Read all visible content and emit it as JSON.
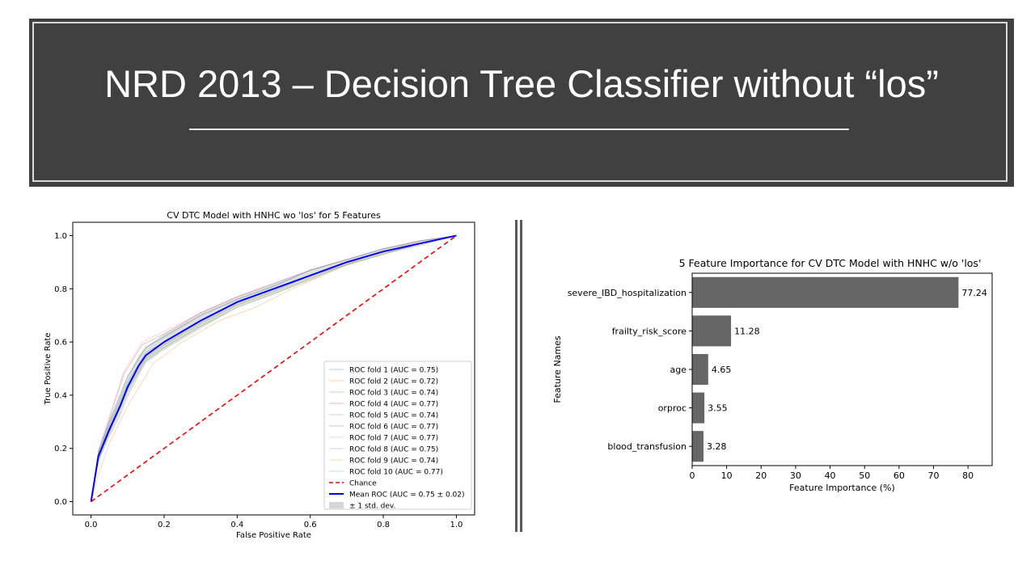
{
  "slide": {
    "title": "NRD 2013 – Decision Tree Classifier without “los”"
  },
  "chart_data": [
    {
      "type": "line",
      "title": "CV DTC Model with HNHC wo 'los' for 5 Features",
      "xlabel": "False Positive Rate",
      "ylabel": "True Positive Rate",
      "xlim": [
        -0.05,
        1.05
      ],
      "ylim": [
        -0.05,
        1.05
      ],
      "xticks": [
        0.0,
        0.2,
        0.4,
        0.6,
        0.8,
        1.0
      ],
      "yticks": [
        0.0,
        0.2,
        0.4,
        0.6,
        0.8,
        1.0
      ],
      "tick_labels": [
        "0.0",
        "0.2",
        "0.4",
        "0.6",
        "0.8",
        "1.0"
      ],
      "grid": false,
      "legend_position": "lower-right",
      "series": [
        {
          "name": "ROC fold 1 (AUC = 0.75)",
          "color": "#1f77b4",
          "x": [
            0,
            0.02,
            0.05,
            0.1,
            0.15,
            0.2,
            0.3,
            0.4,
            0.5,
            0.6,
            0.7,
            0.8,
            0.9,
            1.0
          ],
          "y": [
            0,
            0.17,
            0.28,
            0.44,
            0.55,
            0.6,
            0.68,
            0.75,
            0.8,
            0.85,
            0.9,
            0.94,
            0.97,
            1.0
          ]
        },
        {
          "name": "ROC fold 2 (AUC = 0.72)",
          "color": "#ff7f0e",
          "x": [
            0,
            0.02,
            0.05,
            0.1,
            0.14,
            0.17,
            0.25,
            0.35,
            0.45,
            0.55,
            0.65,
            0.75,
            0.85,
            1.0
          ],
          "y": [
            0,
            0.1,
            0.22,
            0.36,
            0.45,
            0.52,
            0.6,
            0.68,
            0.73,
            0.8,
            0.86,
            0.92,
            0.96,
            1.0
          ]
        },
        {
          "name": "ROC fold 3 (AUC = 0.74)",
          "color": "#2ca02c",
          "x": [
            0,
            0.02,
            0.05,
            0.1,
            0.15,
            0.2,
            0.3,
            0.4,
            0.5,
            0.6,
            0.7,
            0.8,
            0.9,
            1.0
          ],
          "y": [
            0,
            0.15,
            0.26,
            0.42,
            0.53,
            0.58,
            0.66,
            0.73,
            0.78,
            0.84,
            0.89,
            0.93,
            0.97,
            1.0
          ]
        },
        {
          "name": "ROC fold 4 (AUC = 0.77)",
          "color": "#d62728",
          "x": [
            0,
            0.02,
            0.05,
            0.09,
            0.14,
            0.2,
            0.3,
            0.4,
            0.5,
            0.6,
            0.7,
            0.8,
            0.9,
            1.0
          ],
          "y": [
            0,
            0.19,
            0.31,
            0.48,
            0.59,
            0.63,
            0.71,
            0.77,
            0.82,
            0.87,
            0.91,
            0.95,
            0.98,
            1.0
          ]
        },
        {
          "name": "ROC fold 5 (AUC = 0.74)",
          "color": "#9467bd",
          "x": [
            0,
            0.02,
            0.05,
            0.1,
            0.15,
            0.2,
            0.3,
            0.4,
            0.5,
            0.6,
            0.7,
            0.8,
            0.9,
            1.0
          ],
          "y": [
            0,
            0.16,
            0.27,
            0.43,
            0.54,
            0.59,
            0.67,
            0.74,
            0.79,
            0.85,
            0.89,
            0.93,
            0.97,
            1.0
          ]
        },
        {
          "name": "ROC fold 6 (AUC = 0.77)",
          "color": "#8c564b",
          "x": [
            0,
            0.02,
            0.05,
            0.1,
            0.15,
            0.2,
            0.3,
            0.4,
            0.5,
            0.6,
            0.7,
            0.8,
            0.9,
            1.0
          ],
          "y": [
            0,
            0.18,
            0.3,
            0.47,
            0.58,
            0.62,
            0.7,
            0.76,
            0.81,
            0.87,
            0.91,
            0.95,
            0.98,
            1.0
          ]
        },
        {
          "name": "ROC fold 7 (AUC = 0.77)",
          "color": "#e377c2",
          "x": [
            0,
            0.02,
            0.05,
            0.09,
            0.14,
            0.2,
            0.3,
            0.4,
            0.5,
            0.6,
            0.7,
            0.8,
            0.9,
            1.0
          ],
          "y": [
            0,
            0.19,
            0.32,
            0.49,
            0.6,
            0.64,
            0.71,
            0.77,
            0.82,
            0.87,
            0.91,
            0.95,
            0.98,
            1.0
          ]
        },
        {
          "name": "ROC fold 8 (AUC = 0.75)",
          "color": "#7f7f7f",
          "x": [
            0,
            0.02,
            0.05,
            0.1,
            0.15,
            0.2,
            0.3,
            0.4,
            0.5,
            0.6,
            0.7,
            0.8,
            0.9,
            1.0
          ],
          "y": [
            0,
            0.17,
            0.29,
            0.45,
            0.56,
            0.6,
            0.68,
            0.75,
            0.8,
            0.85,
            0.9,
            0.94,
            0.97,
            1.0
          ]
        },
        {
          "name": "ROC fold 9 (AUC = 0.74)",
          "color": "#bcbd22",
          "x": [
            0,
            0.02,
            0.05,
            0.1,
            0.15,
            0.2,
            0.3,
            0.4,
            0.5,
            0.6,
            0.7,
            0.8,
            0.9,
            1.0
          ],
          "y": [
            0,
            0.16,
            0.27,
            0.43,
            0.54,
            0.59,
            0.67,
            0.74,
            0.79,
            0.85,
            0.89,
            0.93,
            0.97,
            1.0
          ]
        },
        {
          "name": "ROC fold 10 (AUC = 0.77)",
          "color": "#17becf",
          "x": [
            0,
            0.02,
            0.05,
            0.1,
            0.15,
            0.2,
            0.3,
            0.4,
            0.5,
            0.6,
            0.7,
            0.8,
            0.9,
            1.0
          ],
          "y": [
            0,
            0.18,
            0.3,
            0.47,
            0.58,
            0.62,
            0.7,
            0.76,
            0.81,
            0.87,
            0.91,
            0.95,
            0.98,
            1.0
          ]
        },
        {
          "name": "Chance",
          "color": "#ff0000",
          "dashed": true,
          "x": [
            0,
            1
          ],
          "y": [
            0,
            1
          ]
        },
        {
          "name": "Mean ROC (AUC = 0.75 ± 0.02)",
          "color": "#0000ff",
          "x": [
            0,
            0.02,
            0.05,
            0.08,
            0.1,
            0.13,
            0.15,
            0.2,
            0.3,
            0.4,
            0.5,
            0.6,
            0.7,
            0.8,
            0.9,
            1.0
          ],
          "y": [
            0,
            0.17,
            0.27,
            0.36,
            0.43,
            0.51,
            0.55,
            0.6,
            0.68,
            0.75,
            0.8,
            0.85,
            0.9,
            0.94,
            0.97,
            1.0
          ]
        }
      ],
      "band": {
        "name": "± 1 std. dev.",
        "color": "#cccccc",
        "x": [
          0,
          0.02,
          0.05,
          0.08,
          0.1,
          0.13,
          0.15,
          0.2,
          0.3,
          0.4,
          0.5,
          0.6,
          0.7,
          0.8,
          0.9,
          1.0
        ],
        "y_upper": [
          0,
          0.19,
          0.3,
          0.4,
          0.47,
          0.55,
          0.58,
          0.63,
          0.71,
          0.77,
          0.82,
          0.87,
          0.91,
          0.95,
          0.98,
          1.0
        ],
        "y_lower": [
          0,
          0.15,
          0.24,
          0.32,
          0.39,
          0.47,
          0.52,
          0.57,
          0.65,
          0.73,
          0.78,
          0.83,
          0.89,
          0.93,
          0.96,
          1.0
        ]
      }
    },
    {
      "type": "bar",
      "orientation": "horizontal",
      "title": "5 Feature Importance for CV DTC Model with HNHC w/o 'los'",
      "xlabel": "Feature Importance (%)",
      "ylabel": "Feature Names",
      "xlim": [
        0,
        87
      ],
      "xticks": [
        0,
        10,
        20,
        30,
        40,
        50,
        60,
        70,
        80
      ],
      "tick_labels": [
        "0",
        "10",
        "20",
        "30",
        "40",
        "50",
        "60",
        "70",
        "80"
      ],
      "bar_color": "#666666",
      "categories": [
        "severe_IBD_hospitalization",
        "frailty_risk_score",
        "age",
        "orproc",
        "blood_transfusion"
      ],
      "values": [
        77.24,
        11.28,
        4.65,
        3.55,
        3.28
      ],
      "value_labels": [
        "77.24",
        "11.28",
        "4.65",
        "3.55",
        "3.28"
      ]
    }
  ]
}
